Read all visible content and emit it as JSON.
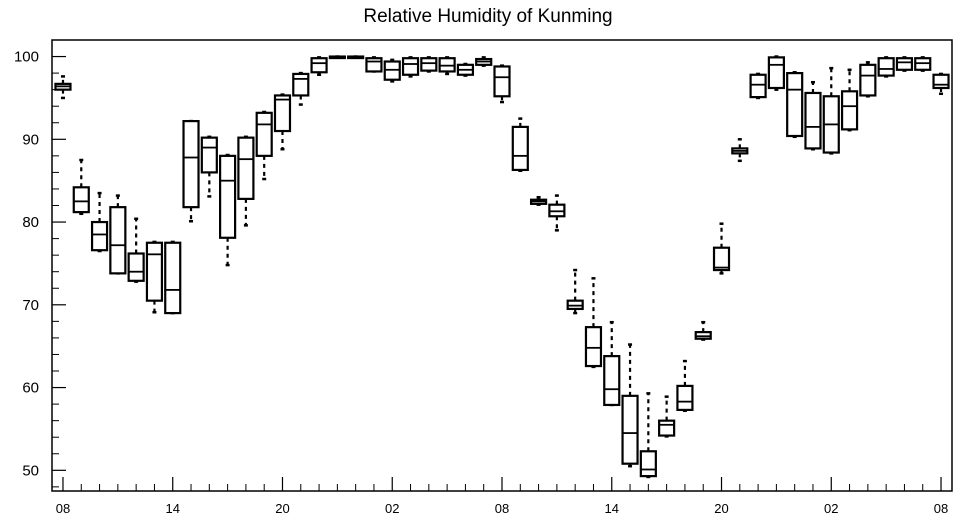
{
  "chart_data": {
    "type": "box",
    "title": "Relative Humidity of Kunming",
    "xlabel": "",
    "ylabel": "",
    "ylim": [
      47.5,
      102
    ],
    "y_ticks": [
      50,
      60,
      70,
      80,
      90,
      100
    ],
    "x_ticks": [
      {
        "label": "08",
        "hour": 0
      },
      {
        "label": "14",
        "hour": 6
      },
      {
        "label": "20",
        "hour": 12
      },
      {
        "label": "02",
        "hour": 18
      },
      {
        "label": "08",
        "hour": 24
      },
      {
        "label": "14",
        "hour": 30
      },
      {
        "label": "20",
        "hour": 36
      },
      {
        "label": "02",
        "hour": 42
      },
      {
        "label": "08",
        "hour": 48
      }
    ],
    "xlim": [
      -0.6,
      48.6
    ],
    "grid": false,
    "boxes": [
      {
        "hour": 0,
        "whisker_low": 95,
        "q1": 96,
        "median": 96.4,
        "q3": 96.7,
        "whisker_high": 97.6
      },
      {
        "hour": 1,
        "whisker_low": 81,
        "q1": 81.2,
        "median": 82.5,
        "q3": 84.2,
        "whisker_high": 87.5
      },
      {
        "hour": 2,
        "whisker_low": 76.5,
        "q1": 76.6,
        "median": 78.5,
        "q3": 80,
        "whisker_high": 83.5
      },
      {
        "hour": 3,
        "whisker_low": 73.8,
        "q1": 73.8,
        "median": 77.2,
        "q3": 81.8,
        "whisker_high": 83.2
      },
      {
        "hour": 4,
        "whisker_low": 72.8,
        "q1": 72.9,
        "median": 74,
        "q3": 76.2,
        "whisker_high": 80.4
      },
      {
        "hour": 5,
        "whisker_low": 69.1,
        "q1": 70.5,
        "median": 76.1,
        "q3": 77.5,
        "whisker_high": 77.6
      },
      {
        "hour": 6,
        "whisker_low": 69,
        "q1": 69,
        "median": 71.8,
        "q3": 77.5,
        "whisker_high": 77.6
      },
      {
        "hour": 7,
        "whisker_low": 80.1,
        "q1": 81.8,
        "median": 87.8,
        "q3": 92.2,
        "whisker_high": 92.2
      },
      {
        "hour": 8,
        "whisker_low": 83.1,
        "q1": 86,
        "median": 89,
        "q3": 90.2,
        "whisker_high": 90.3
      },
      {
        "hour": 9,
        "whisker_low": 74.8,
        "q1": 78.1,
        "median": 85,
        "q3": 88,
        "whisker_high": 88.1
      },
      {
        "hour": 10,
        "whisker_low": 79.6,
        "q1": 82.8,
        "median": 87.6,
        "q3": 90.2,
        "whisker_high": 90.3
      },
      {
        "hour": 11,
        "whisker_low": 85.2,
        "q1": 88,
        "median": 91.8,
        "q3": 93.2,
        "whisker_high": 93.3
      },
      {
        "hour": 12,
        "whisker_low": 88.8,
        "q1": 91,
        "median": 94.8,
        "q3": 95.3,
        "whisker_high": 95.4
      },
      {
        "hour": 13,
        "whisker_low": 94.2,
        "q1": 95.3,
        "median": 97.3,
        "q3": 97.9,
        "whisker_high": 98
      },
      {
        "hour": 14,
        "whisker_low": 97.8,
        "q1": 98.1,
        "median": 99.2,
        "q3": 99.8,
        "whisker_high": 99.9
      },
      {
        "hour": 15,
        "whisker_low": 99.9,
        "q1": 99.9,
        "median": 100,
        "q3": 100,
        "whisker_high": 100
      },
      {
        "hour": 16,
        "whisker_low": 99.9,
        "q1": 99.9,
        "median": 100,
        "q3": 100,
        "whisker_high": 100
      },
      {
        "hour": 17,
        "whisker_low": 98.2,
        "q1": 98.2,
        "median": 99.4,
        "q3": 99.8,
        "whisker_high": 99.9
      },
      {
        "hour": 18,
        "whisker_low": 97,
        "q1": 97.2,
        "median": 98.4,
        "q3": 99.4,
        "whisker_high": 99.6
      },
      {
        "hour": 19,
        "whisker_low": 97.6,
        "q1": 97.8,
        "median": 99.1,
        "q3": 99.8,
        "whisker_high": 99.9
      },
      {
        "hour": 20,
        "whisker_low": 98.2,
        "q1": 98.3,
        "median": 99.2,
        "q3": 99.8,
        "whisker_high": 99.9
      },
      {
        "hour": 21,
        "whisker_low": 97.9,
        "q1": 98.2,
        "median": 98.9,
        "q3": 99.8,
        "whisker_high": 99.9
      },
      {
        "hour": 22,
        "whisker_low": 97.7,
        "q1": 97.8,
        "median": 98.4,
        "q3": 99,
        "whisker_high": 99.1
      },
      {
        "hour": 23,
        "whisker_low": 98.9,
        "q1": 99,
        "median": 99.4,
        "q3": 99.7,
        "whisker_high": 99.9
      },
      {
        "hour": 24,
        "whisker_low": 94.5,
        "q1": 95.2,
        "median": 97.5,
        "q3": 98.8,
        "whisker_high": 98.9
      },
      {
        "hour": 25,
        "whisker_low": 86.2,
        "q1": 86.3,
        "median": 88,
        "q3": 91.5,
        "whisker_high": 92.5
      },
      {
        "hour": 26,
        "whisker_low": 82.1,
        "q1": 82.2,
        "median": 82.5,
        "q3": 82.7,
        "whisker_high": 83
      },
      {
        "hour": 27,
        "whisker_low": 79,
        "q1": 80.7,
        "median": 81.3,
        "q3": 82.1,
        "whisker_high": 83.2
      },
      {
        "hour": 28,
        "whisker_low": 69,
        "q1": 69.5,
        "median": 69.9,
        "q3": 70.5,
        "whisker_high": 74.2
      },
      {
        "hour": 29,
        "whisker_low": 62.5,
        "q1": 62.6,
        "median": 64.8,
        "q3": 67.3,
        "whisker_high": 73.2
      },
      {
        "hour": 30,
        "whisker_low": 57.9,
        "q1": 57.9,
        "median": 59.8,
        "q3": 63.8,
        "whisker_high": 67.9
      },
      {
        "hour": 31,
        "whisker_low": 50.5,
        "q1": 50.8,
        "median": 54.5,
        "q3": 59,
        "whisker_high": 65.2
      },
      {
        "hour": 32,
        "whisker_low": 49.2,
        "q1": 49.3,
        "median": 50.1,
        "q3": 52.3,
        "whisker_high": 59.3
      },
      {
        "hour": 33,
        "whisker_low": 54.1,
        "q1": 54.2,
        "median": 55.5,
        "q3": 56,
        "whisker_high": 58.9
      },
      {
        "hour": 34,
        "whisker_low": 57.2,
        "q1": 57.3,
        "median": 58.3,
        "q3": 60.2,
        "whisker_high": 63.2
      },
      {
        "hour": 35,
        "whisker_low": 65.8,
        "q1": 65.9,
        "median": 66.2,
        "q3": 66.7,
        "whisker_high": 67.9
      },
      {
        "hour": 36,
        "whisker_low": 73.8,
        "q1": 74.2,
        "median": 74.5,
        "q3": 76.9,
        "whisker_high": 79.8
      },
      {
        "hour": 37,
        "whisker_low": 87.4,
        "q1": 88.3,
        "median": 88.6,
        "q3": 88.9,
        "whisker_high": 90
      },
      {
        "hour": 38,
        "whisker_low": 95,
        "q1": 95.1,
        "median": 96.6,
        "q3": 97.8,
        "whisker_high": 97.9
      },
      {
        "hour": 39,
        "whisker_low": 96,
        "q1": 96.2,
        "median": 99,
        "q3": 99.9,
        "whisker_high": 100
      },
      {
        "hour": 40,
        "whisker_low": 90.3,
        "q1": 90.4,
        "median": 96,
        "q3": 98,
        "whisker_high": 98.1
      },
      {
        "hour": 41,
        "whisker_low": 88.8,
        "q1": 88.9,
        "median": 91.5,
        "q3": 95.6,
        "whisker_high": 96.9
      },
      {
        "hour": 42,
        "whisker_low": 88.3,
        "q1": 88.4,
        "median": 91.8,
        "q3": 95.2,
        "whisker_high": 98.6
      },
      {
        "hour": 43,
        "whisker_low": 91.1,
        "q1": 91.2,
        "median": 94,
        "q3": 95.8,
        "whisker_high": 98.4
      },
      {
        "hour": 44,
        "whisker_low": 95.2,
        "q1": 95.3,
        "median": 97.7,
        "q3": 99,
        "whisker_high": 99.3
      },
      {
        "hour": 45,
        "whisker_low": 97.6,
        "q1": 97.7,
        "median": 98.5,
        "q3": 99.8,
        "whisker_high": 99.9
      },
      {
        "hour": 46,
        "whisker_low": 98.3,
        "q1": 98.4,
        "median": 99.3,
        "q3": 99.8,
        "whisker_high": 99.9
      },
      {
        "hour": 47,
        "whisker_low": 98.3,
        "q1": 98.4,
        "median": 99.2,
        "q3": 99.8,
        "whisker_high": 99.9
      },
      {
        "hour": 48,
        "whisker_low": 95.5,
        "q1": 96.2,
        "median": 96.6,
        "q3": 97.8,
        "whisker_high": 97.9
      }
    ]
  }
}
